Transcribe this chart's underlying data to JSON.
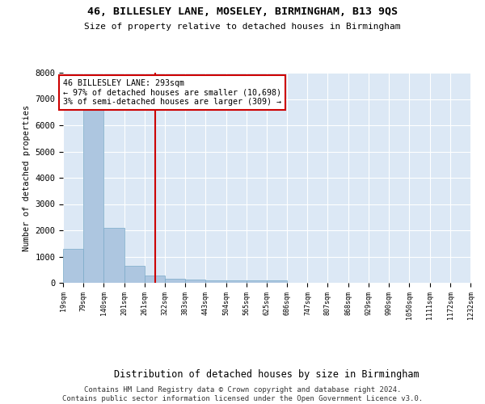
{
  "title": "46, BILLESLEY LANE, MOSELEY, BIRMINGHAM, B13 9QS",
  "subtitle": "Size of property relative to detached houses in Birmingham",
  "xlabel": "Distribution of detached houses by size in Birmingham",
  "ylabel": "Number of detached properties",
  "bar_color": "#adc6e0",
  "bar_edge_color": "#7aaac8",
  "vline_color": "#cc0000",
  "vline_x": 293,
  "annotation_text": "46 BILLESLEY LANE: 293sqm\n← 97% of detached houses are smaller (10,698)\n3% of semi-detached houses are larger (309) →",
  "annotation_box_color": "#ffffff",
  "annotation_box_edge_color": "#cc0000",
  "footer_text": "Contains HM Land Registry data © Crown copyright and database right 2024.\nContains public sector information licensed under the Open Government Licence v3.0.",
  "bin_edges": [
    19,
    79,
    140,
    201,
    261,
    322,
    383,
    443,
    504,
    565,
    625,
    686,
    747,
    807,
    868,
    929,
    990,
    1050,
    1111,
    1172,
    1232
  ],
  "bar_heights": [
    1300,
    6580,
    2080,
    650,
    290,
    155,
    125,
    90,
    80,
    80,
    105,
    0,
    0,
    0,
    0,
    0,
    0,
    0,
    0,
    0
  ],
  "ylim": [
    0,
    8000
  ],
  "yticks": [
    0,
    1000,
    2000,
    3000,
    4000,
    5000,
    6000,
    7000,
    8000
  ],
  "background_color": "#dce8f5",
  "grid_color": "#ffffff"
}
